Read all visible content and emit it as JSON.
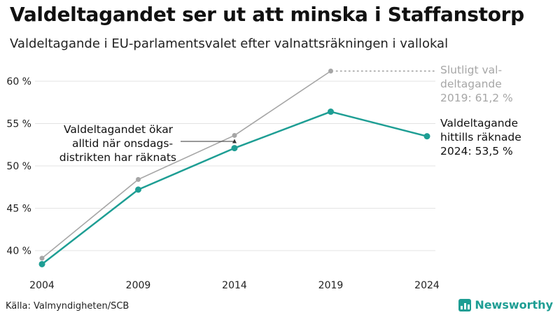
{
  "header": {
    "title": "Valdeltagandet ser ut att minska i Staffanstorp",
    "subtitle": "Valdeltagande i EU-parlamentsvalet efter valnattsräkningen i vallokal"
  },
  "annotations": {
    "final_lines": [
      "Slutligt val-",
      "deltagande",
      "2019: 61,2 %"
    ],
    "current_lines": [
      "Valdeltagande",
      "hittills räknade",
      "2024: 53,5 %"
    ],
    "note_lines": [
      "Valdeltagandet ökar",
      "alltid när onsdags-",
      "distrikten har räknats"
    ]
  },
  "footer": {
    "source": "Källa: Valmyndigheten/SCB",
    "brand": "Newsworthy"
  },
  "colors": {
    "final": "#a6a6a6",
    "counted": "#1e9e94",
    "grid": "#e3e3e3",
    "text": "#111111"
  },
  "chart_data": {
    "type": "line",
    "title": "Valdeltagandet ser ut att minska i Staffanstorp",
    "subtitle": "Valdeltagande i EU-parlamentsvalet efter valnattsräkningen i vallokal",
    "xlabel": "",
    "ylabel": "",
    "categories": [
      "2004",
      "2009",
      "2014",
      "2019",
      "2024"
    ],
    "y_ticks": [
      40,
      45,
      50,
      55,
      60
    ],
    "y_tick_labels": [
      "40 %",
      "45 %",
      "50 %",
      "55 %",
      "60 %"
    ],
    "ylim": [
      37.5,
      62.5
    ],
    "grid": "horizontal",
    "series": [
      {
        "key": "final",
        "values": [
          39.1,
          48.4,
          53.6,
          61.2,
          null
        ]
      },
      {
        "key": "counted",
        "values": [
          38.4,
          47.2,
          52.1,
          56.4,
          53.5
        ]
      }
    ]
  }
}
